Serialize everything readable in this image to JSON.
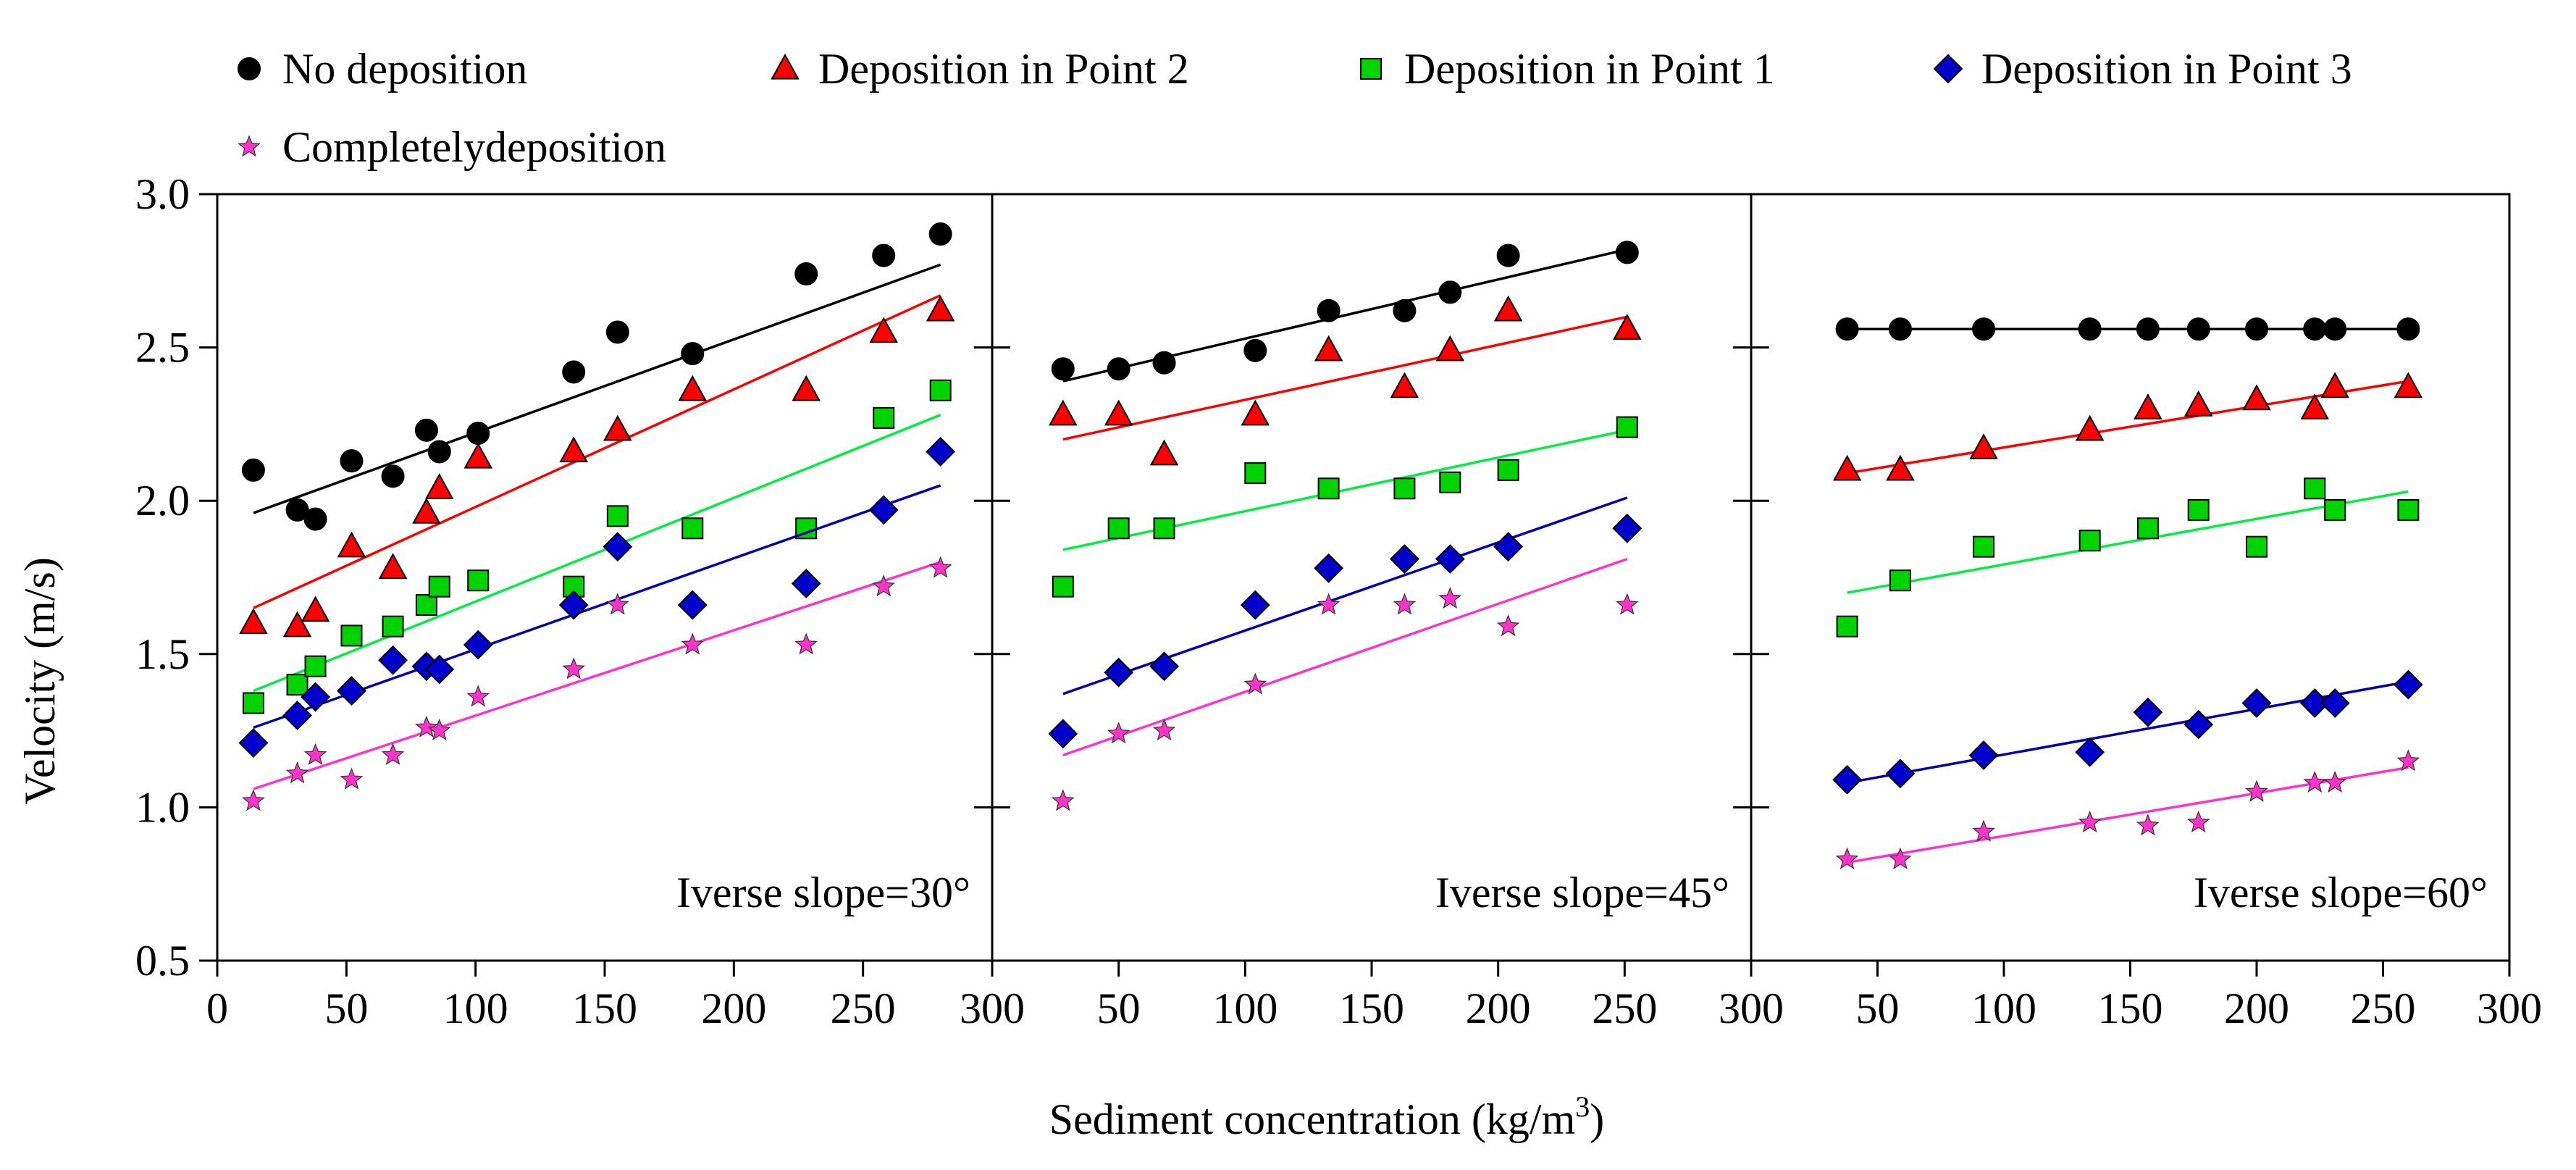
{
  "chart_data": {
    "type": "scatter",
    "ylabel": "Velocity (m/s)",
    "xlabel_main": "Sediment concentration (kg/m",
    "xlabel_sup": "3",
    "xlabel_close": ")",
    "ylim": [
      0.5,
      3.0
    ],
    "yticks": [
      "0.5",
      "1.0",
      "1.5",
      "2.0",
      "2.5",
      "3.0"
    ],
    "xlim": [
      0,
      300
    ],
    "xticks": [
      "0",
      "50",
      "100",
      "150",
      "200",
      "250",
      "300"
    ],
    "legend": [
      {
        "name": "No deposition",
        "marker": "circle",
        "color": "#000000"
      },
      {
        "name": "Deposition in  Point 2",
        "marker": "triangle",
        "color": "#ff0000"
      },
      {
        "name": "Deposition in  Point 1",
        "marker": "square",
        "color": "#00d400"
      },
      {
        "name": "Deposition in  Point 3",
        "marker": "diamond",
        "color": "#0000cc"
      },
      {
        "name": "Completelydeposition",
        "marker": "star",
        "color": "#ff33cc"
      }
    ],
    "line_colors": [
      "#000000",
      "#ff0000",
      "#00ee44",
      "#0000aa",
      "#ff33cc"
    ],
    "panels": [
      {
        "label": "Iverse slope=30°",
        "series": [
          {
            "name": "No deposition",
            "x": [
              14,
              31,
              38,
              52,
              68,
              81,
              86,
              101,
              138,
              155,
              184,
              228,
              258,
              280
            ],
            "y": [
              2.1,
              1.97,
              1.94,
              2.13,
              2.08,
              2.23,
              2.16,
              2.22,
              2.42,
              2.55,
              2.48,
              2.74,
              2.8,
              2.87
            ],
            "fit": [
              [
                14,
                1.96
              ],
              [
                280,
                2.77
              ]
            ]
          },
          {
            "name": "Deposition in  Point 2",
            "x": [
              14,
              31,
              38,
              52,
              68,
              81,
              86,
              101,
              138,
              155,
              184,
              228,
              258,
              280
            ],
            "y": [
              1.6,
              1.59,
              1.64,
              1.85,
              1.78,
              1.96,
              2.04,
              2.14,
              2.16,
              2.23,
              2.36,
              2.36,
              2.55,
              2.62
            ],
            "fit": [
              [
                14,
                1.65
              ],
              [
                280,
                2.67
              ]
            ]
          },
          {
            "name": "Deposition in  Point 1",
            "x": [
              14,
              31,
              38,
              52,
              68,
              81,
              86,
              101,
              138,
              155,
              184,
              228,
              258,
              280
            ],
            "y": [
              1.34,
              1.4,
              1.46,
              1.56,
              1.59,
              1.66,
              1.72,
              1.74,
              1.72,
              1.95,
              1.91,
              1.91,
              2.27,
              2.36
            ],
            "fit": [
              [
                14,
                1.38
              ],
              [
                280,
                2.28
              ]
            ]
          },
          {
            "name": "Deposition in  Point 3",
            "x": [
              14,
              31,
              38,
              52,
              68,
              81,
              86,
              101,
              138,
              155,
              184,
              228,
              258,
              280
            ],
            "y": [
              1.21,
              1.3,
              1.36,
              1.38,
              1.48,
              1.46,
              1.45,
              1.53,
              1.66,
              1.85,
              1.66,
              1.73,
              1.97,
              2.16
            ],
            "fit": [
              [
                14,
                1.26
              ],
              [
                280,
                2.05
              ]
            ]
          },
          {
            "name": "Completelydeposition",
            "x": [
              14,
              31,
              38,
              52,
              68,
              81,
              86,
              101,
              138,
              155,
              184,
              228,
              258,
              280
            ],
            "y": [
              1.02,
              1.11,
              1.17,
              1.09,
              1.17,
              1.26,
              1.25,
              1.36,
              1.45,
              1.66,
              1.53,
              1.53,
              1.72,
              1.78
            ],
            "fit": [
              [
                14,
                1.06
              ],
              [
                280,
                1.8
              ]
            ]
          }
        ]
      },
      {
        "label": "Iverse slope=45°",
        "series": [
          {
            "name": "No deposition",
            "x": [
              28,
              50,
              68,
              104,
              133,
              163,
              181,
              204,
              251
            ],
            "y": [
              2.43,
              2.43,
              2.45,
              2.49,
              2.62,
              2.62,
              2.68,
              2.8,
              2.81
            ],
            "fit": [
              [
                28,
                2.39
              ],
              [
                251,
                2.82
              ]
            ]
          },
          {
            "name": "Deposition in  Point 2",
            "x": [
              28,
              50,
              68,
              104,
              133,
              163,
              181,
              204,
              251
            ],
            "y": [
              2.28,
              2.28,
              2.15,
              2.28,
              2.49,
              2.37,
              2.49,
              2.62,
              2.56
            ],
            "fit": [
              [
                28,
                2.2
              ],
              [
                251,
                2.6
              ]
            ]
          },
          {
            "name": "Deposition in  Point 1",
            "x": [
              28,
              50,
              68,
              104,
              133,
              163,
              181,
              204,
              251
            ],
            "y": [
              1.72,
              1.91,
              1.91,
              2.09,
              2.04,
              2.04,
              2.06,
              2.1,
              2.24
            ],
            "fit": [
              [
                28,
                1.84
              ],
              [
                251,
                2.23
              ]
            ]
          },
          {
            "name": "Deposition in  Point 3",
            "x": [
              28,
              50,
              68,
              104,
              133,
              163,
              181,
              204,
              251
            ],
            "y": [
              1.24,
              1.44,
              1.46,
              1.66,
              1.78,
              1.81,
              1.81,
              1.85,
              1.91
            ],
            "fit": [
              [
                28,
                1.37
              ],
              [
                251,
                2.01
              ]
            ]
          },
          {
            "name": "Completelydeposition",
            "x": [
              28,
              50,
              68,
              104,
              133,
              163,
              181,
              204,
              251
            ],
            "y": [
              1.02,
              1.24,
              1.25,
              1.4,
              1.66,
              1.66,
              1.68,
              1.59,
              1.66
            ],
            "fit": [
              [
                28,
                1.17
              ],
              [
                251,
                1.81
              ]
            ]
          }
        ]
      },
      {
        "label": "Iverse slope=60°",
        "series": [
          {
            "name": "No deposition",
            "x": [
              38,
              59,
              92,
              134,
              157,
              177,
              200,
              223,
              231,
              260
            ],
            "y": [
              2.56,
              2.56,
              2.56,
              2.56,
              2.56,
              2.56,
              2.56,
              2.56,
              2.56,
              2.56
            ],
            "fit": [
              [
                38,
                2.56
              ],
              [
                260,
                2.56
              ]
            ]
          },
          {
            "name": "Deposition in  Point 2",
            "x": [
              38,
              59,
              92,
              134,
              157,
              177,
              200,
              223,
              231,
              260
            ],
            "y": [
              2.1,
              2.1,
              2.17,
              2.23,
              2.3,
              2.31,
              2.33,
              2.3,
              2.37,
              2.37
            ],
            "fit": [
              [
                38,
                2.09
              ],
              [
                260,
                2.39
              ]
            ]
          },
          {
            "name": "Deposition in  Point 1",
            "x": [
              38,
              59,
              92,
              134,
              157,
              177,
              200,
              223,
              231,
              260
            ],
            "y": [
              1.59,
              1.74,
              1.85,
              1.87,
              1.91,
              1.97,
              1.85,
              2.04,
              1.97,
              1.97
            ],
            "fit": [
              [
                38,
                1.7
              ],
              [
                260,
                2.03
              ]
            ]
          },
          {
            "name": "Deposition in  Point 3",
            "x": [
              38,
              59,
              92,
              134,
              157,
              177,
              200,
              223,
              231,
              260
            ],
            "y": [
              1.09,
              1.11,
              1.17,
              1.18,
              1.31,
              1.27,
              1.34,
              1.34,
              1.34,
              1.4
            ],
            "fit": [
              [
                38,
                1.08
              ],
              [
                260,
                1.41
              ]
            ]
          },
          {
            "name": "Completelydeposition",
            "x": [
              38,
              59,
              92,
              134,
              157,
              177,
              200,
              223,
              231,
              260
            ],
            "y": [
              0.83,
              0.83,
              0.92,
              0.95,
              0.94,
              0.95,
              1.05,
              1.08,
              1.08,
              1.15
            ],
            "fit": [
              [
                38,
                0.82
              ],
              [
                260,
                1.13
              ]
            ]
          }
        ]
      }
    ]
  }
}
